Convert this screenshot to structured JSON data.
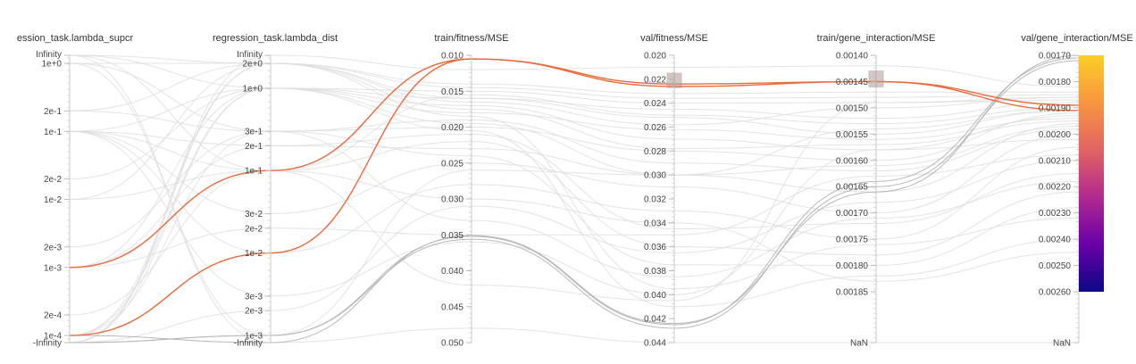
{
  "chart_data": {
    "type": "parallel_coordinates",
    "axes": [
      {
        "id": "lambda_supcr",
        "label": "ession_task.lambda_supcr",
        "scale": "log",
        "ticks": [
          "Infinity",
          "1e+0",
          "2e-1",
          "1e-1",
          "2e-2",
          "1e-2",
          "2e-3",
          "1e-3",
          "2e-4",
          "1e-4",
          "-Infinity"
        ]
      },
      {
        "id": "lambda_dist",
        "label": "regression_task.lambda_dist",
        "scale": "log",
        "ticks": [
          "Infinity",
          "2e+0",
          "1e+0",
          "3e-1",
          "2e-1",
          "1e-1",
          "3e-2",
          "2e-2",
          "1e-2",
          "3e-3",
          "2e-3",
          "1e-3",
          "-Infinity"
        ]
      },
      {
        "id": "train_fitness_mse",
        "label": "train/fitness/MSE",
        "scale": "linear",
        "range": [
          0.01,
          0.05
        ],
        "ticks": [
          "0.010",
          "0.015",
          "0.020",
          "0.025",
          "0.030",
          "0.035",
          "0.040",
          "0.045",
          "0.050"
        ]
      },
      {
        "id": "val_fitness_mse",
        "label": "val/fitness/MSE",
        "scale": "linear",
        "range": [
          0.02,
          0.044
        ],
        "ticks": [
          "0.020",
          "0.022",
          "0.024",
          "0.026",
          "0.028",
          "0.030",
          "0.032",
          "0.034",
          "0.036",
          "0.038",
          "0.040",
          "0.042",
          "0.044"
        ]
      },
      {
        "id": "train_gene_interaction_mse",
        "label": "train/gene_interaction/MSE",
        "scale": "linear",
        "range": [
          0.0014,
          0.00185
        ],
        "ticks": [
          "0.00140",
          "0.00145",
          "0.00150",
          "0.00155",
          "0.00160",
          "0.00165",
          "0.00170",
          "0.00175",
          "0.00180",
          "0.00185",
          "NaN"
        ]
      },
      {
        "id": "val_gene_interaction_mse",
        "label": "val/gene_interaction/MSE",
        "scale": "linear",
        "range": [
          0.0017,
          0.0026
        ],
        "ticks": [
          "0.00170",
          "0.00180",
          "0.00190",
          "0.00200",
          "0.00210",
          "0.00220",
          "0.00230",
          "0.00240",
          "0.00250",
          "0.00260",
          "NaN"
        ]
      }
    ],
    "colorscale": {
      "metric": "val/gene_interaction/MSE",
      "min": 0.0017,
      "max": 0.0026,
      "colors": [
        "#fcce25",
        "#f89540",
        "#e16462",
        "#b12a90",
        "#6a00a8",
        "#0d0887"
      ]
    },
    "brushes": [
      {
        "axis": "val_fitness_mse",
        "range": [
          0.0215,
          0.0227
        ]
      },
      {
        "axis": "train_gene_interaction_mse",
        "range": [
          0.00143,
          0.00146
        ]
      }
    ],
    "highlighted_runs": [
      {
        "values": [
          "1e-3",
          "1e-1",
          0.0105,
          0.0224,
          0.00145,
          0.00189
        ],
        "color": "#ea6a3d"
      },
      {
        "values": [
          "1e-4",
          "1e-2",
          0.0105,
          0.0226,
          0.00145,
          0.00191
        ],
        "color": "#ea6a3d"
      }
    ],
    "emphasized_runs": [
      {
        "values": [
          "-Infinity",
          "1e-3",
          0.0352,
          0.0425,
          0.00164,
          0.00171
        ]
      },
      {
        "values": [
          "-Infinity",
          "1e-3",
          0.0356,
          0.0428,
          0.00165,
          0.00172
        ]
      },
      {
        "values": [
          "1e-4",
          "-Infinity",
          0.0351,
          0.0424,
          0.00166,
          0.0017
        ]
      }
    ],
    "background_runs": [
      {
        "values": [
          "Infinity",
          "2e+0",
          0.016,
          0.0245,
          0.00152,
          0.00188
        ]
      },
      {
        "values": [
          "Infinity",
          "1e+0",
          0.018,
          0.0262,
          0.00156,
          0.00194
        ]
      },
      {
        "values": [
          "1e+0",
          "3e-1",
          0.02,
          0.028,
          0.0016,
          0.00192
        ]
      },
      {
        "values": [
          "1e+0",
          "2e+0",
          0.0165,
          0.0258,
          0.0015,
          0.00186
        ]
      },
      {
        "values": [
          "1e-1",
          "1e+0",
          0.015,
          0.024,
          0.00149,
          0.00187
        ]
      },
      {
        "values": [
          "1e-1",
          "2e-1",
          0.023,
          0.03,
          0.00166,
          0.00196
        ]
      },
      {
        "values": [
          "1e-1",
          "1e-1",
          0.0155,
          0.025,
          0.00153,
          0.0019
        ]
      },
      {
        "values": [
          "1e-1",
          "1e-2",
          0.028,
          0.033,
          0.00175,
          0.00205
        ]
      },
      {
        "values": [
          "1e-1",
          "3e-2",
          0.025,
          0.031,
          0.0017,
          0.002
        ]
      },
      {
        "values": [
          "2e-2",
          "1e+0",
          0.017,
          0.027,
          0.00158,
          0.00193
        ]
      },
      {
        "values": [
          "1e-2",
          "2e+0",
          0.0145,
          0.0236,
          0.00148,
          0.00185
        ]
      },
      {
        "values": [
          "2e-3",
          "3e-1",
          0.019,
          0.029,
          0.00162,
          0.00198
        ]
      },
      {
        "values": [
          "1e-3",
          "1e+0",
          0.016,
          0.0252,
          0.00155,
          0.00191
        ]
      },
      {
        "values": [
          "1e-3",
          "2e-1",
          0.021,
          0.0345,
          0.00172,
          0.00215
        ]
      },
      {
        "values": [
          "2e-4",
          "1e-1",
          0.022,
          0.036,
          0.00178,
          0.00222
        ]
      },
      {
        "values": [
          "1e-4",
          "2e+0",
          0.0175,
          0.0278,
          0.00157,
          0.00195
        ]
      },
      {
        "values": [
          "1e-4",
          "1e+0",
          0.0195,
          0.03,
          0.00161,
          0.00197
        ]
      },
      {
        "values": [
          "1e-4",
          "3e-1",
          0.024,
          0.0375,
          0.0018,
          0.00228
        ]
      },
      {
        "values": [
          "-Infinity",
          "2e+0",
          0.0185,
          0.0395,
          0.00176,
          0.00232
        ]
      },
      {
        "values": [
          "-Infinity",
          "1e+0",
          0.0205,
          0.041,
          0.00182,
          0.0024
        ]
      },
      {
        "values": [
          "-Infinity",
          "2e-3",
          0.031,
          0.0365,
          0.00168,
          0.0021
        ]
      },
      {
        "values": [
          "Infinity",
          "-Infinity",
          0.048,
          0.044,
          "NaN",
          "NaN"
        ]
      },
      {
        "values": [
          "-Infinity",
          "Infinity",
          0.012,
          0.021,
          0.00142,
          0.00182
        ]
      },
      {
        "values": [
          "2e-1",
          "3e-1",
          0.033,
          0.0385,
          0.00171,
          0.00218
        ]
      },
      {
        "values": [
          "1e-2",
          "1e-1",
          0.03,
          0.034,
          0.00183,
          0.00245
        ]
      },
      {
        "values": [
          "1e-3",
          "2e-2",
          0.035,
          0.035,
          0.00163,
          0.00208
        ]
      },
      {
        "values": [
          "1e-1",
          "3e-3",
          0.036,
          0.04,
          0.00158,
          0.00202
        ]
      },
      {
        "values": [
          "Infinity",
          "1e-1",
          0.042,
          0.0405,
          0.00149,
          0.00186
        ]
      },
      {
        "values": [
          "2e-1",
          "2e+0",
          0.014,
          0.0232,
          0.00147,
          0.00184
        ]
      },
      {
        "values": [
          "1e+0",
          "1e-3",
          0.026,
          0.03,
          0.00154,
          0.00191
        ]
      }
    ]
  }
}
